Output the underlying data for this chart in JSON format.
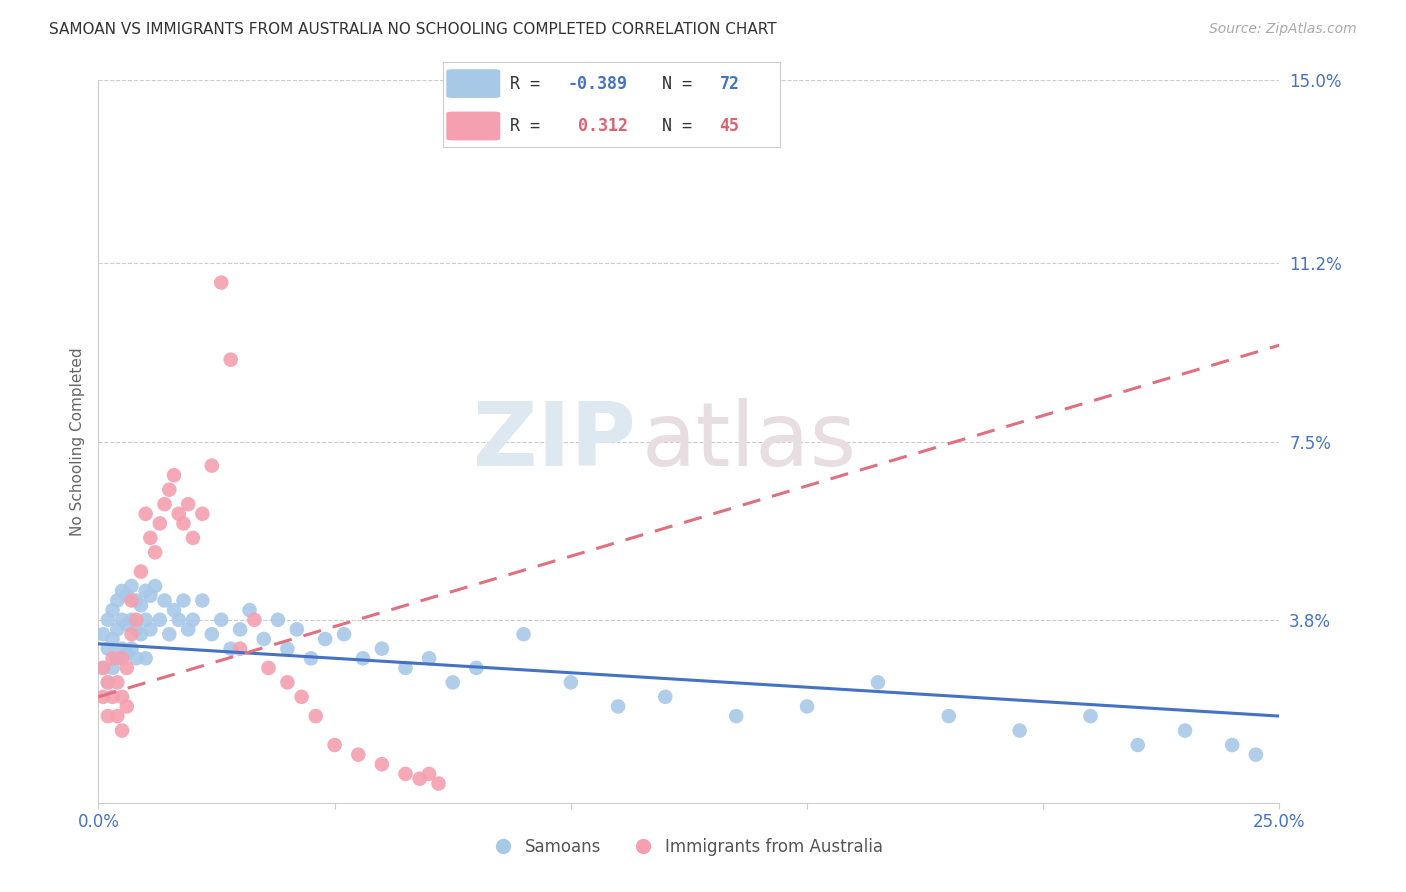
{
  "title": "SAMOAN VS IMMIGRANTS FROM AUSTRALIA NO SCHOOLING COMPLETED CORRELATION CHART",
  "source_text": "Source: ZipAtlas.com",
  "ylabel": "No Schooling Completed",
  "xlim": [
    0.0,
    0.25
  ],
  "ylim": [
    0.0,
    0.15
  ],
  "yticks": [
    0.038,
    0.075,
    0.112,
    0.15
  ],
  "ytick_labels": [
    "3.8%",
    "7.5%",
    "11.2%",
    "15.0%"
  ],
  "xticks": [
    0.0,
    0.05,
    0.1,
    0.15,
    0.2,
    0.25
  ],
  "xtick_labels": [
    "0.0%",
    "",
    "",
    "",
    "",
    "25.0%"
  ],
  "samoan_color": "#a8c8e8",
  "australia_color": "#f4a0b0",
  "samoan_trend_color": "#4472c4",
  "australia_trend_color": "#e07080",
  "background_color": "#ffffff",
  "grid_color": "#cccccc",
  "axis_color": "#cccccc",
  "title_color": "#333333",
  "ytick_color": "#4472c4",
  "xtick_color": "#4472c4",
  "watermark_zip": "ZIP",
  "watermark_atlas": "atlas",
  "samoan_N": 72,
  "australia_N": 45,
  "samoan_legend_R": "-0.389",
  "samoan_legend_N": "72",
  "australia_legend_R": "0.312",
  "australia_legend_N": "45",
  "samoan_x": [
    0.001,
    0.001,
    0.002,
    0.002,
    0.002,
    0.003,
    0.003,
    0.003,
    0.004,
    0.004,
    0.004,
    0.005,
    0.005,
    0.005,
    0.006,
    0.006,
    0.006,
    0.007,
    0.007,
    0.007,
    0.008,
    0.008,
    0.008,
    0.009,
    0.009,
    0.01,
    0.01,
    0.01,
    0.011,
    0.011,
    0.012,
    0.013,
    0.014,
    0.015,
    0.016,
    0.017,
    0.018,
    0.019,
    0.02,
    0.022,
    0.024,
    0.026,
    0.028,
    0.03,
    0.032,
    0.035,
    0.038,
    0.04,
    0.042,
    0.045,
    0.048,
    0.052,
    0.056,
    0.06,
    0.065,
    0.07,
    0.075,
    0.08,
    0.09,
    0.1,
    0.11,
    0.12,
    0.135,
    0.15,
    0.165,
    0.18,
    0.195,
    0.21,
    0.22,
    0.23,
    0.24,
    0.245
  ],
  "samoan_y": [
    0.035,
    0.028,
    0.038,
    0.032,
    0.025,
    0.04,
    0.034,
    0.028,
    0.042,
    0.036,
    0.03,
    0.044,
    0.038,
    0.032,
    0.043,
    0.037,
    0.031,
    0.045,
    0.038,
    0.032,
    0.042,
    0.036,
    0.03,
    0.041,
    0.035,
    0.044,
    0.038,
    0.03,
    0.043,
    0.036,
    0.045,
    0.038,
    0.042,
    0.035,
    0.04,
    0.038,
    0.042,
    0.036,
    0.038,
    0.042,
    0.035,
    0.038,
    0.032,
    0.036,
    0.04,
    0.034,
    0.038,
    0.032,
    0.036,
    0.03,
    0.034,
    0.035,
    0.03,
    0.032,
    0.028,
    0.03,
    0.025,
    0.028,
    0.035,
    0.025,
    0.02,
    0.022,
    0.018,
    0.02,
    0.025,
    0.018,
    0.015,
    0.018,
    0.012,
    0.015,
    0.012,
    0.01
  ],
  "australia_x": [
    0.001,
    0.001,
    0.002,
    0.002,
    0.003,
    0.003,
    0.004,
    0.004,
    0.005,
    0.005,
    0.005,
    0.006,
    0.006,
    0.007,
    0.007,
    0.008,
    0.009,
    0.01,
    0.011,
    0.012,
    0.013,
    0.014,
    0.015,
    0.016,
    0.017,
    0.018,
    0.019,
    0.02,
    0.022,
    0.024,
    0.026,
    0.028,
    0.03,
    0.033,
    0.036,
    0.04,
    0.043,
    0.046,
    0.05,
    0.055,
    0.06,
    0.065,
    0.068,
    0.07,
    0.072
  ],
  "australia_y": [
    0.028,
    0.022,
    0.025,
    0.018,
    0.03,
    0.022,
    0.025,
    0.018,
    0.03,
    0.022,
    0.015,
    0.028,
    0.02,
    0.035,
    0.042,
    0.038,
    0.048,
    0.06,
    0.055,
    0.052,
    0.058,
    0.062,
    0.065,
    0.068,
    0.06,
    0.058,
    0.062,
    0.055,
    0.06,
    0.07,
    0.108,
    0.092,
    0.032,
    0.038,
    0.028,
    0.025,
    0.022,
    0.018,
    0.012,
    0.01,
    0.008,
    0.006,
    0.005,
    0.006,
    0.004
  ],
  "samoan_trend_x": [
    0.0,
    0.25
  ],
  "samoan_trend_y": [
    0.033,
    0.018
  ],
  "australia_trend_x": [
    0.0,
    0.25
  ],
  "australia_trend_y": [
    0.022,
    0.095
  ]
}
